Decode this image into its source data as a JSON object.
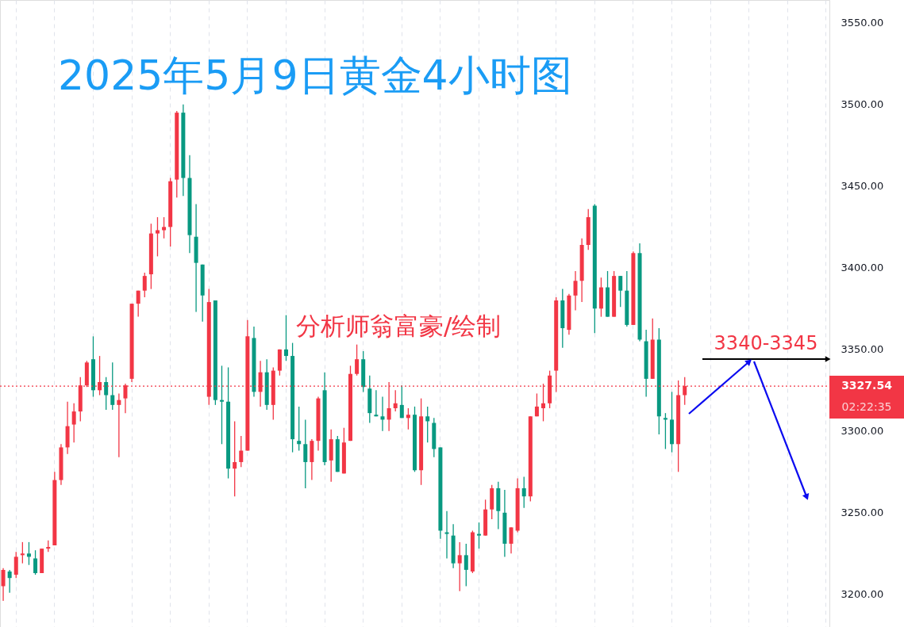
{
  "chart_data": {
    "type": "candlestick",
    "title": "2025年5月9日黄金4小时图",
    "categories": [
      null,
      null,
      null,
      null,
      null,
      null,
      null,
      null,
      null,
      null,
      null,
      null,
      null,
      null,
      null,
      null,
      null,
      null,
      null,
      null,
      null,
      null,
      null,
      null,
      null,
      null,
      null,
      null,
      null,
      null,
      null,
      null,
      null,
      null,
      null,
      null,
      null,
      null,
      null,
      null,
      null,
      null,
      null,
      null,
      null,
      null,
      null,
      null,
      null,
      null,
      null,
      null,
      null,
      null,
      null,
      null,
      null,
      null,
      null,
      null,
      null,
      null,
      null,
      null,
      null,
      null,
      null,
      null,
      null,
      null,
      null,
      null,
      null,
      null,
      null,
      null,
      null,
      null,
      null,
      null,
      null,
      null,
      null,
      null,
      null,
      null,
      null,
      null,
      null,
      null,
      null,
      null,
      null,
      null,
      null,
      null,
      null,
      null,
      null,
      null,
      null,
      null,
      null,
      null,
      null,
      null,
      null,
      null,
      null,
      null,
      null,
      null,
      null,
      null,
      null,
      null,
      null,
      null,
      null,
      null,
      null,
      null,
      null,
      null,
      null,
      null,
      null,
      null,
      null
    ],
    "ohlc": [
      [
        3205,
        3216,
        3196,
        3215
      ],
      [
        3214,
        3215,
        3201,
        3210
      ],
      [
        3212,
        3226,
        3210,
        3223
      ],
      [
        3224,
        3232,
        3219,
        3225
      ],
      [
        3225,
        3232,
        3218,
        3223
      ],
      [
        3222,
        3227,
        3212,
        3213
      ],
      [
        3213,
        3228,
        3213,
        3228
      ],
      [
        3228,
        3233,
        3226,
        3229
      ],
      [
        3230,
        3275,
        3230,
        3270
      ],
      [
        3270,
        3292,
        3267,
        3290
      ],
      [
        3290,
        3318,
        3286,
        3303
      ],
      [
        3304,
        3317,
        3293,
        3312
      ],
      [
        3312,
        3333,
        3306,
        3328
      ],
      [
        3328,
        3343,
        3327,
        3342
      ],
      [
        3344,
        3358,
        3321,
        3325
      ],
      [
        3325,
        3346,
        3322,
        3330
      ],
      [
        3330,
        3333,
        3313,
        3322
      ],
      [
        3322,
        3342,
        3313,
        3316
      ],
      [
        3316,
        3323,
        3284,
        3319
      ],
      [
        3320,
        3329,
        3311,
        3328
      ],
      [
        3332,
        3378,
        3330,
        3378
      ],
      [
        3378,
        3386,
        3370,
        3386
      ],
      [
        3386,
        3397,
        3382,
        3395
      ],
      [
        3396,
        3427,
        3387,
        3421
      ],
      [
        3421,
        3431,
        3407,
        3423
      ],
      [
        3423,
        3431,
        3418,
        3425
      ],
      [
        3425,
        3455,
        3413,
        3453
      ],
      [
        3454,
        3496,
        3443,
        3495
      ],
      [
        3495,
        3500,
        3444,
        3455
      ],
      [
        3455,
        3469,
        3409,
        3420
      ],
      [
        3419,
        3439,
        3373,
        3403
      ],
      [
        3402,
        3402,
        3367,
        3383
      ],
      [
        3321,
        3387,
        3316,
        3379
      ],
      [
        3380,
        3380,
        3316,
        3319
      ],
      [
        3319,
        3340,
        3292,
        3318
      ],
      [
        3318,
        3339,
        3271,
        3277
      ],
      [
        3277,
        3306,
        3260,
        3281
      ],
      [
        3281,
        3297,
        3278,
        3288
      ],
      [
        3288,
        3368,
        3288,
        3358
      ],
      [
        3357,
        3364,
        3321,
        3324
      ],
      [
        3324,
        3343,
        3315,
        3336
      ],
      [
        3336,
        3344,
        3313,
        3316
      ],
      [
        3316,
        3339,
        3307,
        3337
      ],
      [
        3337,
        3350,
        3334,
        3350
      ],
      [
        3350,
        3371,
        3343,
        3346
      ],
      [
        3346,
        3354,
        3287,
        3295
      ],
      [
        3294,
        3315,
        3288,
        3292
      ],
      [
        3292,
        3307,
        3265,
        3281
      ],
      [
        3281,
        3295,
        3270,
        3294
      ],
      [
        3294,
        3321,
        3288,
        3320
      ],
      [
        3325,
        3336,
        3279,
        3281
      ],
      [
        3282,
        3301,
        3269,
        3295
      ],
      [
        3295,
        3297,
        3275,
        3275
      ],
      [
        3274,
        3302,
        3274,
        3293
      ],
      [
        3294,
        3340,
        3294,
        3335
      ],
      [
        3335,
        3353,
        3334,
        3344
      ],
      [
        3344,
        3349,
        3324,
        3327
      ],
      [
        3326,
        3334,
        3305,
        3311
      ],
      [
        3310,
        3325,
        3309,
        3309
      ],
      [
        3309,
        3321,
        3300,
        3307
      ],
      [
        3307,
        3330,
        3300,
        3314
      ],
      [
        3314,
        3325,
        3312,
        3317
      ],
      [
        3316,
        3328,
        3308,
        3308
      ],
      [
        3308,
        3314,
        3301,
        3310
      ],
      [
        3310,
        3315,
        3275,
        3276
      ],
      [
        3276,
        3320,
        3267,
        3309
      ],
      [
        3309,
        3315,
        3293,
        3306
      ],
      [
        3305,
        3308,
        3284,
        3289
      ],
      [
        3290,
        3290,
        3234,
        3239
      ],
      [
        3238,
        3251,
        3222,
        3237
      ],
      [
        3236,
        3243,
        3216,
        3219
      ],
      [
        3219,
        3232,
        3202,
        3224
      ],
      [
        3224,
        3231,
        3205,
        3215
      ],
      [
        3214,
        3239,
        3213,
        3238
      ],
      [
        3237,
        3244,
        3228,
        3236
      ],
      [
        3236,
        3258,
        3236,
        3252
      ],
      [
        3252,
        3267,
        3246,
        3265
      ],
      [
        3265,
        3269,
        3240,
        3251
      ],
      [
        3250,
        3264,
        3223,
        3231
      ],
      [
        3231,
        3241,
        3225,
        3241
      ],
      [
        3239,
        3271,
        3238,
        3265
      ],
      [
        3265,
        3272,
        3253,
        3260
      ],
      [
        3260,
        3309,
        3257,
        3309
      ],
      [
        3309,
        3323,
        3309,
        3315
      ],
      [
        3314,
        3329,
        3306,
        3317
      ],
      [
        3317,
        3337,
        3314,
        3334
      ],
      [
        3337,
        3382,
        3324,
        3380
      ],
      [
        3380,
        3387,
        3351,
        3363
      ],
      [
        3362,
        3384,
        3359,
        3383
      ],
      [
        3383,
        3398,
        3374,
        3392
      ],
      [
        3392,
        3418,
        3379,
        3414
      ],
      [
        3414,
        3436,
        3411,
        3431
      ],
      [
        3438,
        3439,
        3360,
        3375
      ],
      [
        3375,
        3394,
        3370,
        3388
      ],
      [
        3388,
        3398,
        3370,
        3370
      ],
      [
        3370,
        3398,
        3370,
        3395
      ],
      [
        3395,
        3395,
        3376,
        3386
      ],
      [
        3386,
        3398,
        3364,
        3365
      ],
      [
        3365,
        3410,
        3365,
        3409
      ],
      [
        3409,
        3415,
        3355,
        3356
      ],
      [
        3355,
        3362,
        3321,
        3332
      ],
      [
        3332,
        3369,
        3332,
        3356
      ],
      [
        3356,
        3363,
        3298,
        3309
      ],
      [
        3308,
        3311,
        3289,
        3307
      ],
      [
        3307,
        3324,
        3287,
        3292
      ],
      [
        3292,
        3331,
        3275,
        3322
      ],
      [
        3322,
        3333,
        3316,
        3327.54
      ],
      null,
      null,
      null,
      null,
      null,
      null,
      null,
      null,
      null,
      null,
      null,
      null,
      null,
      null,
      null,
      null,
      null,
      null,
      null,
      null,
      null,
      null
    ],
    "colors": [
      "#f23645",
      "#089981",
      "#f23645",
      "#f23645",
      "#089981",
      "#089981",
      "#f23645",
      "#f23645",
      "#f23645",
      "#f23645",
      "#f23645",
      "#f23645",
      "#f23645",
      "#f23645",
      "#089981",
      "#f23645",
      "#089981",
      "#089981",
      "#f23645",
      "#f23645",
      "#f23645",
      "#f23645",
      "#f23645",
      "#f23645",
      "#f23645",
      "#f23645",
      "#f23645",
      "#f23645",
      "#089981",
      "#089981",
      "#089981",
      "#089981",
      "#f23645",
      "#089981",
      "#089981",
      "#089981",
      "#f23645",
      "#f23645",
      "#f23645",
      "#089981",
      "#f23645",
      "#089981",
      "#f23645",
      "#f23645",
      "#089981",
      "#089981",
      "#089981",
      "#089981",
      "#f23645",
      "#f23645",
      "#089981",
      "#f23645",
      "#089981",
      "#f23645",
      "#f23645",
      "#f23645",
      "#089981",
      "#089981",
      "#089981",
      "#089981",
      "#f23645",
      "#f23645",
      "#089981",
      "#f23645",
      "#089981",
      "#f23645",
      "#089981",
      "#089981",
      "#089981",
      "#089981",
      "#089981",
      "#f23645",
      "#089981",
      "#f23645",
      "#089981",
      "#f23645",
      "#f23645",
      "#089981",
      "#089981",
      "#f23645",
      "#f23645",
      "#089981",
      "#f23645",
      "#f23645",
      "#f23645",
      "#f23645",
      "#f23645",
      "#089981",
      "#f23645",
      "#f23645",
      "#f23645",
      "#f23645",
      "#089981",
      "#f23645",
      "#089981",
      "#f23645",
      "#089981",
      "#089981",
      "#f23645",
      "#089981",
      "#089981",
      "#f23645",
      "#089981",
      "#089981",
      "#089981",
      "#f23645",
      "#f23645",
      null,
      null,
      null,
      null,
      null,
      null,
      null,
      null,
      null,
      null,
      null,
      null,
      null,
      null,
      null,
      null,
      null,
      null,
      null,
      null,
      null,
      null
    ],
    "ylim": [
      3180,
      3564
    ],
    "yticks": [
      {
        "value": 3200,
        "label": "3200.00"
      },
      {
        "value": 3250,
        "label": "3250.00"
      },
      {
        "value": 3300,
        "label": "3300.00"
      },
      {
        "value": 3350,
        "label": "3350.00"
      },
      {
        "value": 3400,
        "label": "3400.00"
      },
      {
        "value": 3450,
        "label": "3450.00"
      },
      {
        "value": 3500,
        "label": "3500.00"
      },
      {
        "value": 3550,
        "label": "3550.00"
      }
    ],
    "tick_labels": "y",
    "grid": "x",
    "ref_lines": [
      {
        "axis": "y",
        "value": 3327.54,
        "label": "3327.54",
        "color": "#f23645",
        "line_style": "dotted"
      }
    ],
    "annotations": [
      "分析师翁富豪/绘制",
      "02:22:35",
      "3340-3345"
    ]
  }
}
